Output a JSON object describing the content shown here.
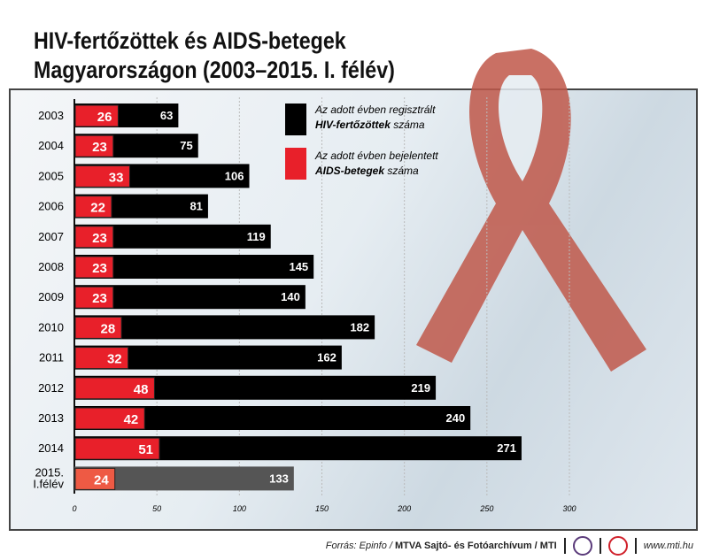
{
  "title_line1": "HIV-fertőzöttek és AIDS-betegek",
  "title_line2": "Magyarországon (2003–2015. I. félév)",
  "chart_data": {
    "type": "bar",
    "orientation": "horizontal",
    "categories": [
      "2003",
      "2004",
      "2005",
      "2006",
      "2007",
      "2008",
      "2009",
      "2010",
      "2011",
      "2012",
      "2013",
      "2014",
      "2015. I.félév"
    ],
    "series": [
      {
        "name": "Az adott évben regisztrált HIV-fertőzöttek száma",
        "color": "#000000",
        "values": [
          63,
          75,
          106,
          81,
          119,
          145,
          140,
          182,
          162,
          219,
          240,
          271,
          133
        ]
      },
      {
        "name": "Az adott évben bejelentett AIDS-betegek száma",
        "color": "#e8202a",
        "values": [
          26,
          23,
          33,
          22,
          23,
          23,
          23,
          28,
          32,
          48,
          42,
          51,
          24
        ]
      }
    ],
    "partial_year_colors": {
      "hiv": "#555555",
      "aids": "#ee5a44"
    },
    "xlim": [
      0,
      300
    ],
    "xticks": [
      0,
      50,
      100,
      150,
      200,
      250,
      300
    ],
    "grid": true,
    "legend": {
      "placement": "top-right",
      "hiv_line1": "Az adott évben regisztrált",
      "hiv_bold": "HIV-fertőzöttek",
      "hiv_rest": " száma",
      "aids_line1": "Az adott évben bejelentett",
      "aids_bold": "AIDS-betegek",
      "aids_rest": " száma"
    }
  },
  "footer": {
    "source_italic": "Forrás: Epinfo / ",
    "source_bold": "MTVA Sajtó- és Fotóarchívum / MTI",
    "logo1": "MTVA",
    "website": "www.mti.hu"
  }
}
